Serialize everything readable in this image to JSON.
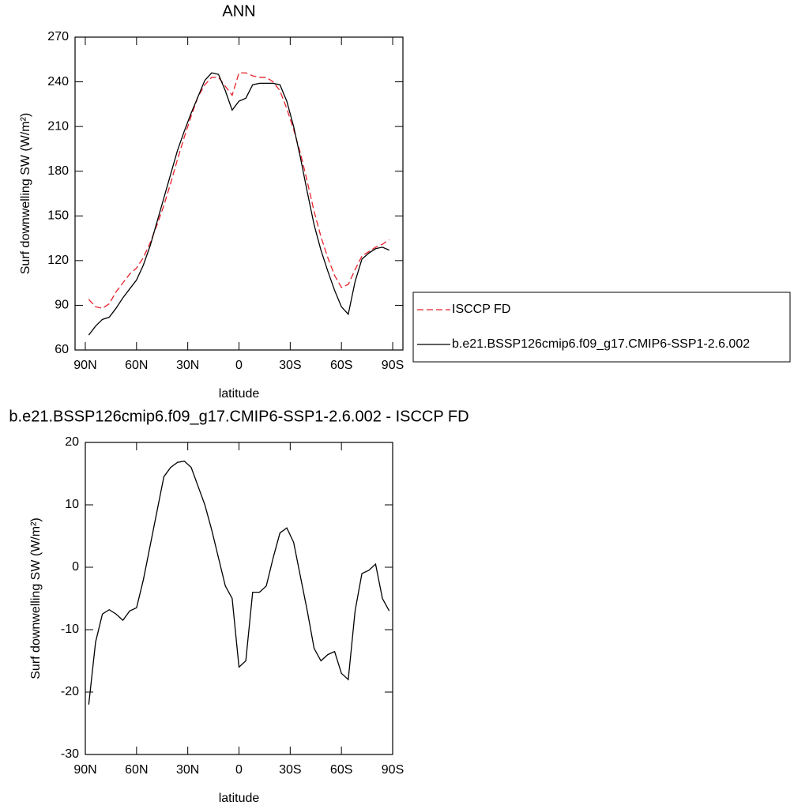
{
  "chart_data": [
    {
      "type": "line",
      "title": "ANN",
      "xlabel": "latitude",
      "ylabel": "Surf downwelling SW (W/m²)",
      "x": [
        88,
        84,
        80,
        76,
        72,
        68,
        64,
        60,
        56,
        52,
        48,
        44,
        40,
        36,
        32,
        28,
        24,
        20,
        16,
        12,
        8,
        4,
        0,
        -4,
        -8,
        -12,
        -16,
        -20,
        -24,
        -28,
        -32,
        -36,
        -40,
        -44,
        -48,
        -52,
        -56,
        -60,
        -64,
        -68,
        -72,
        -76,
        -80,
        -84,
        -88
      ],
      "series": [
        {
          "name": "ISCCP FD",
          "color": "#e8212a",
          "dash": true,
          "values": [
            94,
            89,
            88,
            91,
            99,
            105,
            111,
            115,
            122,
            132,
            144,
            157,
            172,
            188,
            203,
            217,
            230,
            238,
            243,
            243,
            237,
            231,
            246,
            246,
            244,
            243,
            243,
            240,
            234,
            222,
            208,
            192,
            173,
            153,
            136,
            122,
            110,
            102,
            104,
            114,
            123,
            126,
            129,
            131,
            134
          ]
        },
        {
          "name": "b.e21.BSSP126cmip6.f09_g17.CMIP6-SSP1-2.6.002",
          "color": "#000000",
          "dash": false,
          "values": [
            70,
            76,
            80.5,
            82,
            88,
            95,
            101,
            107,
            117,
            130,
            146,
            162,
            178,
            194,
            207,
            219,
            230,
            241,
            246,
            245,
            234,
            221,
            227,
            229,
            238,
            239,
            239,
            239,
            238,
            227,
            210,
            189,
            166,
            144,
            127,
            113,
            100,
            89,
            84,
            106,
            121,
            125,
            128,
            129,
            127
          ]
        }
      ],
      "xlim": [
        96,
        -96
      ],
      "ylim": [
        60,
        270
      ],
      "xticks": [
        {
          "value": 90,
          "label": "90N"
        },
        {
          "value": 60,
          "label": "60N"
        },
        {
          "value": 30,
          "label": "30N"
        },
        0,
        {
          "value": -30,
          "label": "30S"
        },
        {
          "value": -60,
          "label": "60S"
        },
        {
          "value": -90,
          "label": "90S"
        }
      ],
      "yticks": [
        60,
        90,
        120,
        150,
        180,
        210,
        240,
        270
      ],
      "legend": "right"
    },
    {
      "type": "line",
      "title": "b.e21.BSSP126cmip6.f09_g17.CMIP6-SSP1-2.6.002 - ISCCP FD",
      "xlabel": "latitude",
      "ylabel": "Surf downwelling SW (W/m²)",
      "x": [
        88,
        84,
        80,
        76,
        72,
        68,
        64,
        60,
        56,
        52,
        48,
        44,
        40,
        36,
        32,
        28,
        24,
        20,
        16,
        12,
        8,
        4,
        0,
        -4,
        -8,
        -12,
        -16,
        -20,
        -24,
        -28,
        -32,
        -36,
        -40,
        -44,
        -48,
        -52,
        -56,
        -60,
        -64,
        -68,
        -72,
        -76,
        -80,
        -84,
        -88
      ],
      "series": [
        {
          "color": "#000000",
          "dash": false,
          "values": [
            -22,
            -12,
            -7.5,
            -6.8,
            -7.5,
            -8.5,
            -7,
            -6.5,
            -2,
            3.5,
            9,
            14.5,
            16,
            16.8,
            17,
            16,
            13,
            10,
            6,
            1.5,
            -3,
            -5,
            -16,
            -15,
            -4,
            -4,
            -3,
            1.5,
            5.5,
            6.3,
            4,
            -1.5,
            -7,
            -13,
            -15,
            -14,
            -13.5,
            -17,
            -18,
            -7,
            -1,
            -0.5,
            0.5,
            -5,
            -7
          ]
        }
      ],
      "xlim": [
        90,
        -90
      ],
      "ylim": [
        -30,
        20
      ],
      "xticks": [
        {
          "value": 90,
          "label": "90N"
        },
        {
          "value": 60,
          "label": "60N"
        },
        {
          "value": 30,
          "label": "30N"
        },
        0,
        {
          "value": -30,
          "label": "30S"
        },
        {
          "value": -60,
          "label": "60S"
        },
        {
          "value": -90,
          "label": "90S"
        }
      ],
      "yticks": [
        -30,
        -20,
        -10,
        0,
        10,
        20
      ]
    }
  ]
}
